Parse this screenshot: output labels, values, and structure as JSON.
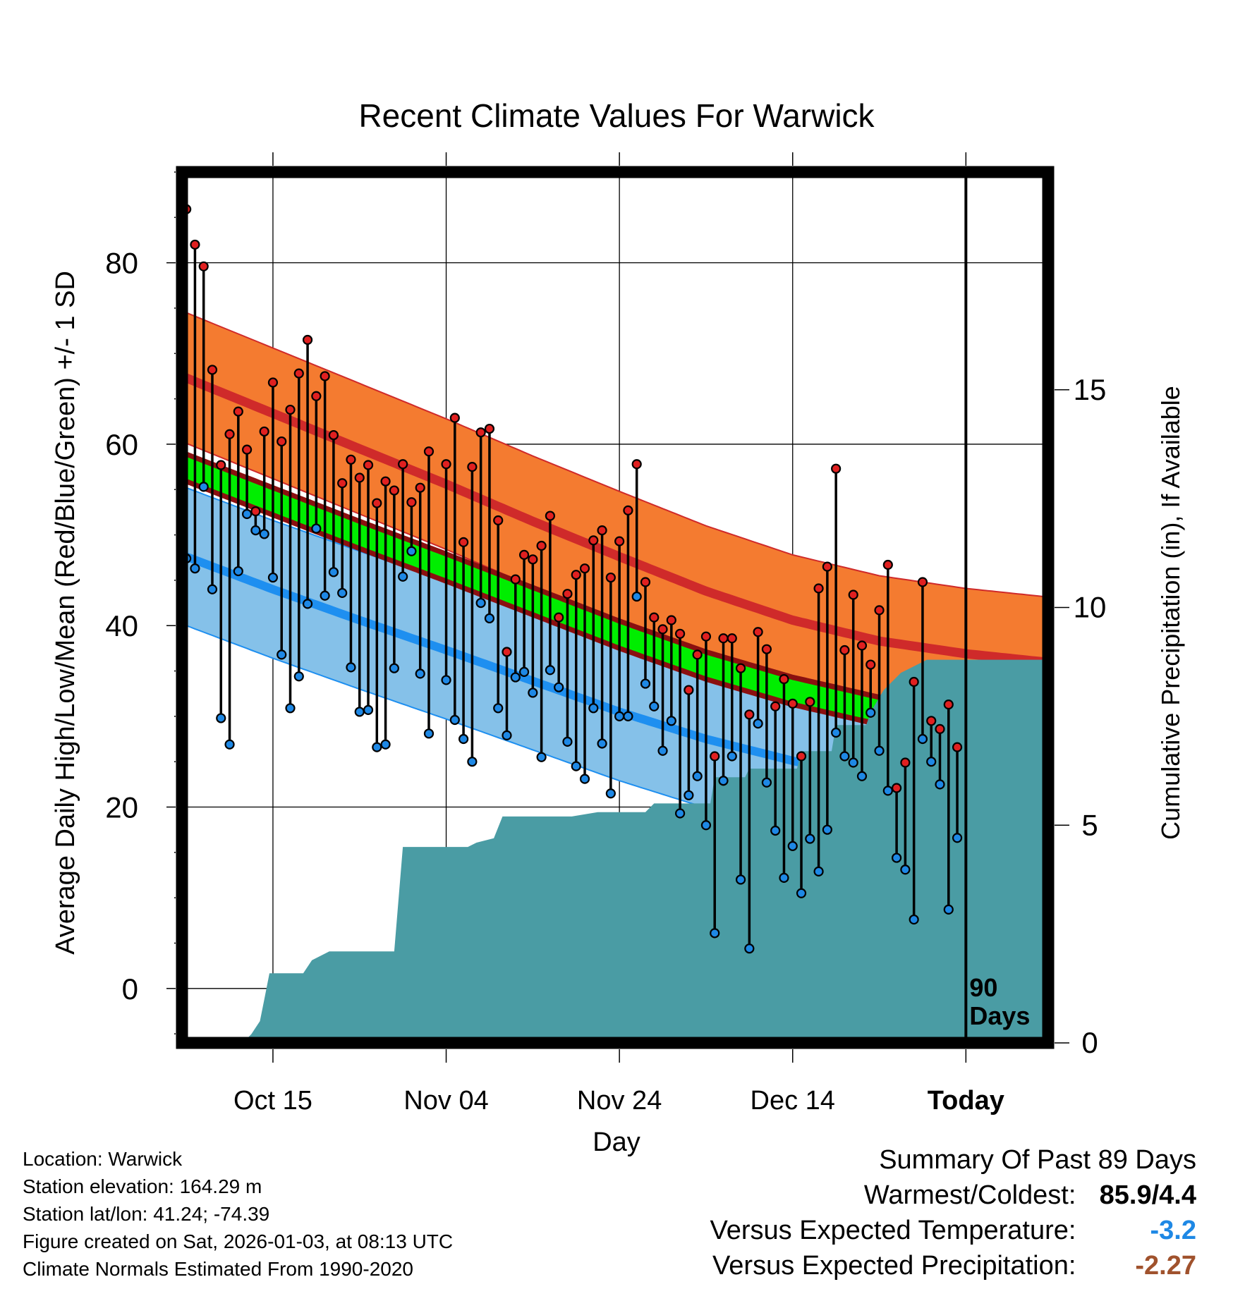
{
  "chart_data": {
    "type": "line",
    "title": "Recent Climate Values For Warwick",
    "xlabel": "Day",
    "ylabel": "Average Daily High/Low/Mean (Red/Blue/Green) +/- 1 SD",
    "y2label": "Cumulative Precipitation (in), If Available",
    "ylim": [
      -6,
      90
    ],
    "y2lim": [
      0,
      20
    ],
    "xlim": [
      -0.5,
      99.5
    ],
    "x_ticks": [
      {
        "day": 10,
        "label": "Oct 15"
      },
      {
        "day": 30,
        "label": "Nov 04"
      },
      {
        "day": 50,
        "label": "Nov 24"
      },
      {
        "day": 70,
        "label": "Dec 14"
      },
      {
        "day": 90,
        "label": "Today"
      }
    ],
    "y_ticks": [
      0,
      20,
      40,
      60,
      80
    ],
    "y2_ticks": [
      0,
      5,
      10,
      15
    ],
    "today_marker": {
      "day": 90,
      "label_line1": "90",
      "label_line2": "Days"
    },
    "colors": {
      "high_band": "#f47b30",
      "high_line": "#cf2a2a",
      "low_band": "#85c1e9",
      "low_line": "#1e8ff0",
      "mean_band": "#00ee00",
      "mean_edge": "#8b1010",
      "precip": "#4a9ca4",
      "high_marker": "#e02020",
      "low_marker": "#1e88e5",
      "frame": "#000000"
    },
    "normals": {
      "days": [
        0,
        10,
        20,
        30,
        40,
        50,
        60,
        70,
        80,
        90,
        99
      ],
      "high_mean": [
        67.3,
        63.4,
        59.5,
        55.6,
        51.5,
        47.6,
        43.8,
        40.6,
        38.3,
        36.9,
        36.0
      ],
      "high_sd": 7.2,
      "low_mean": [
        47.6,
        44.0,
        40.6,
        37.3,
        33.9,
        30.5,
        27.5,
        25.1,
        23.1,
        21.4,
        20.3
      ],
      "low_sd": 7.6,
      "mean_mean": [
        57.4,
        53.7,
        50.0,
        46.4,
        42.7,
        39.0,
        35.6,
        32.8,
        30.6,
        29.1,
        28.1
      ],
      "mean_sd": 1.2
    },
    "series": [
      {
        "name": "Daily High",
        "values": [
          85.9,
          82.0,
          79.6,
          68.2,
          57.7,
          61.1,
          63.6,
          59.4,
          52.6,
          61.4,
          66.8,
          60.3,
          63.8,
          67.8,
          71.5,
          65.3,
          67.5,
          61.0,
          55.7,
          58.3,
          56.3,
          57.7,
          53.5,
          55.9,
          54.9,
          57.8,
          53.6,
          55.2,
          59.2,
          null,
          57.8,
          62.9,
          49.2,
          57.5,
          61.3,
          61.7,
          51.6,
          37.1,
          45.1,
          47.8,
          47.3,
          48.8,
          52.1,
          40.9,
          43.5,
          45.6,
          46.3,
          49.4,
          50.5,
          45.3,
          49.3,
          52.7,
          57.8,
          44.8,
          40.9,
          39.6,
          40.6,
          39.1,
          32.9,
          36.8,
          38.8,
          25.6,
          38.6,
          38.6,
          35.3,
          30.2,
          39.3,
          37.4,
          31.1,
          34.1,
          31.4,
          25.6,
          31.6,
          44.1,
          46.5,
          57.3,
          37.3,
          43.4,
          37.8,
          35.7,
          41.7,
          46.7,
          22.1,
          24.9,
          33.8,
          44.8,
          29.5,
          28.6,
          31.3,
          26.6
        ]
      },
      {
        "name": "Daily Low",
        "values": [
          47.4,
          46.3,
          55.3,
          44.0,
          29.8,
          26.9,
          46.0,
          52.3,
          50.5,
          50.1,
          45.3,
          36.8,
          30.9,
          34.4,
          42.4,
          50.7,
          43.3,
          45.9,
          43.6,
          35.4,
          30.5,
          30.7,
          26.6,
          26.9,
          35.3,
          45.4,
          48.2,
          34.7,
          28.1,
          null,
          34.0,
          29.6,
          27.5,
          25.0,
          42.5,
          40.8,
          30.9,
          27.9,
          34.3,
          34.9,
          32.6,
          25.5,
          35.1,
          33.2,
          27.2,
          24.5,
          23.1,
          30.9,
          27.0,
          21.5,
          30.0,
          30.0,
          43.2,
          33.6,
          31.1,
          26.2,
          29.5,
          19.3,
          21.3,
          23.4,
          18.0,
          6.1,
          22.9,
          25.6,
          12.0,
          4.4,
          29.2,
          22.7,
          17.4,
          12.2,
          15.7,
          10.5,
          16.5,
          12.9,
          17.5,
          28.2,
          25.6,
          24.9,
          23.4,
          30.4,
          26.2,
          21.8,
          14.4,
          13.1,
          7.6,
          27.5,
          25.0,
          22.5,
          8.7,
          16.6
        ]
      },
      {
        "name": "Cumulative Precipitation",
        "x": [
          -0.5,
          6.5,
          7.5,
          8.5,
          9.0,
          9.6,
          13.5,
          14.5,
          16.5,
          17.5,
          24.0,
          25.0,
          32.5,
          33.5,
          35.5,
          36.5,
          44.5,
          47.5,
          48.5,
          49.5,
          50.5,
          53.0,
          54.0,
          56.5,
          57.0,
          60.5,
          61.0,
          64.5,
          65.0,
          70.5,
          71.0,
          74.5,
          75.0,
          78.5,
          79.0,
          80.5,
          82.5,
          83.5,
          85.5,
          86.5,
          99.5
        ],
        "values": [
          0,
          0,
          0.2,
          0.5,
          1.0,
          1.6,
          1.6,
          1.9,
          2.1,
          2.1,
          2.1,
          4.5,
          4.5,
          4.6,
          4.7,
          5.2,
          5.2,
          5.3,
          5.3,
          5.3,
          5.3,
          5.3,
          5.5,
          5.5,
          5.5,
          5.5,
          6.1,
          6.1,
          6.3,
          6.3,
          6.7,
          6.7,
          7.3,
          7.3,
          7.6,
          8.1,
          8.5,
          8.6,
          8.8,
          8.8,
          8.8
        ]
      }
    ]
  },
  "info": {
    "location": "Location: Warwick",
    "elevation": "Station elevation: 164.29 m",
    "latlon": "Station lat/lon: 41.24; -74.39",
    "created": "Figure created on Sat, 2026-01-03, at 08:13 UTC",
    "normals": "Climate Normals Estimated From 1990-2020"
  },
  "summary": {
    "title": "Summary Of Past 89 Days",
    "warm_cold_label": "Warmest/Coldest:",
    "warm_cold_value": "85.9/4.4",
    "temp_label": "Versus Expected Temperature:",
    "temp_value": "-3.2",
    "temp_color": "#1e88e5",
    "precip_label": "Versus Expected Precipitation:",
    "precip_value": "-2.27",
    "precip_color": "#a0522d"
  }
}
